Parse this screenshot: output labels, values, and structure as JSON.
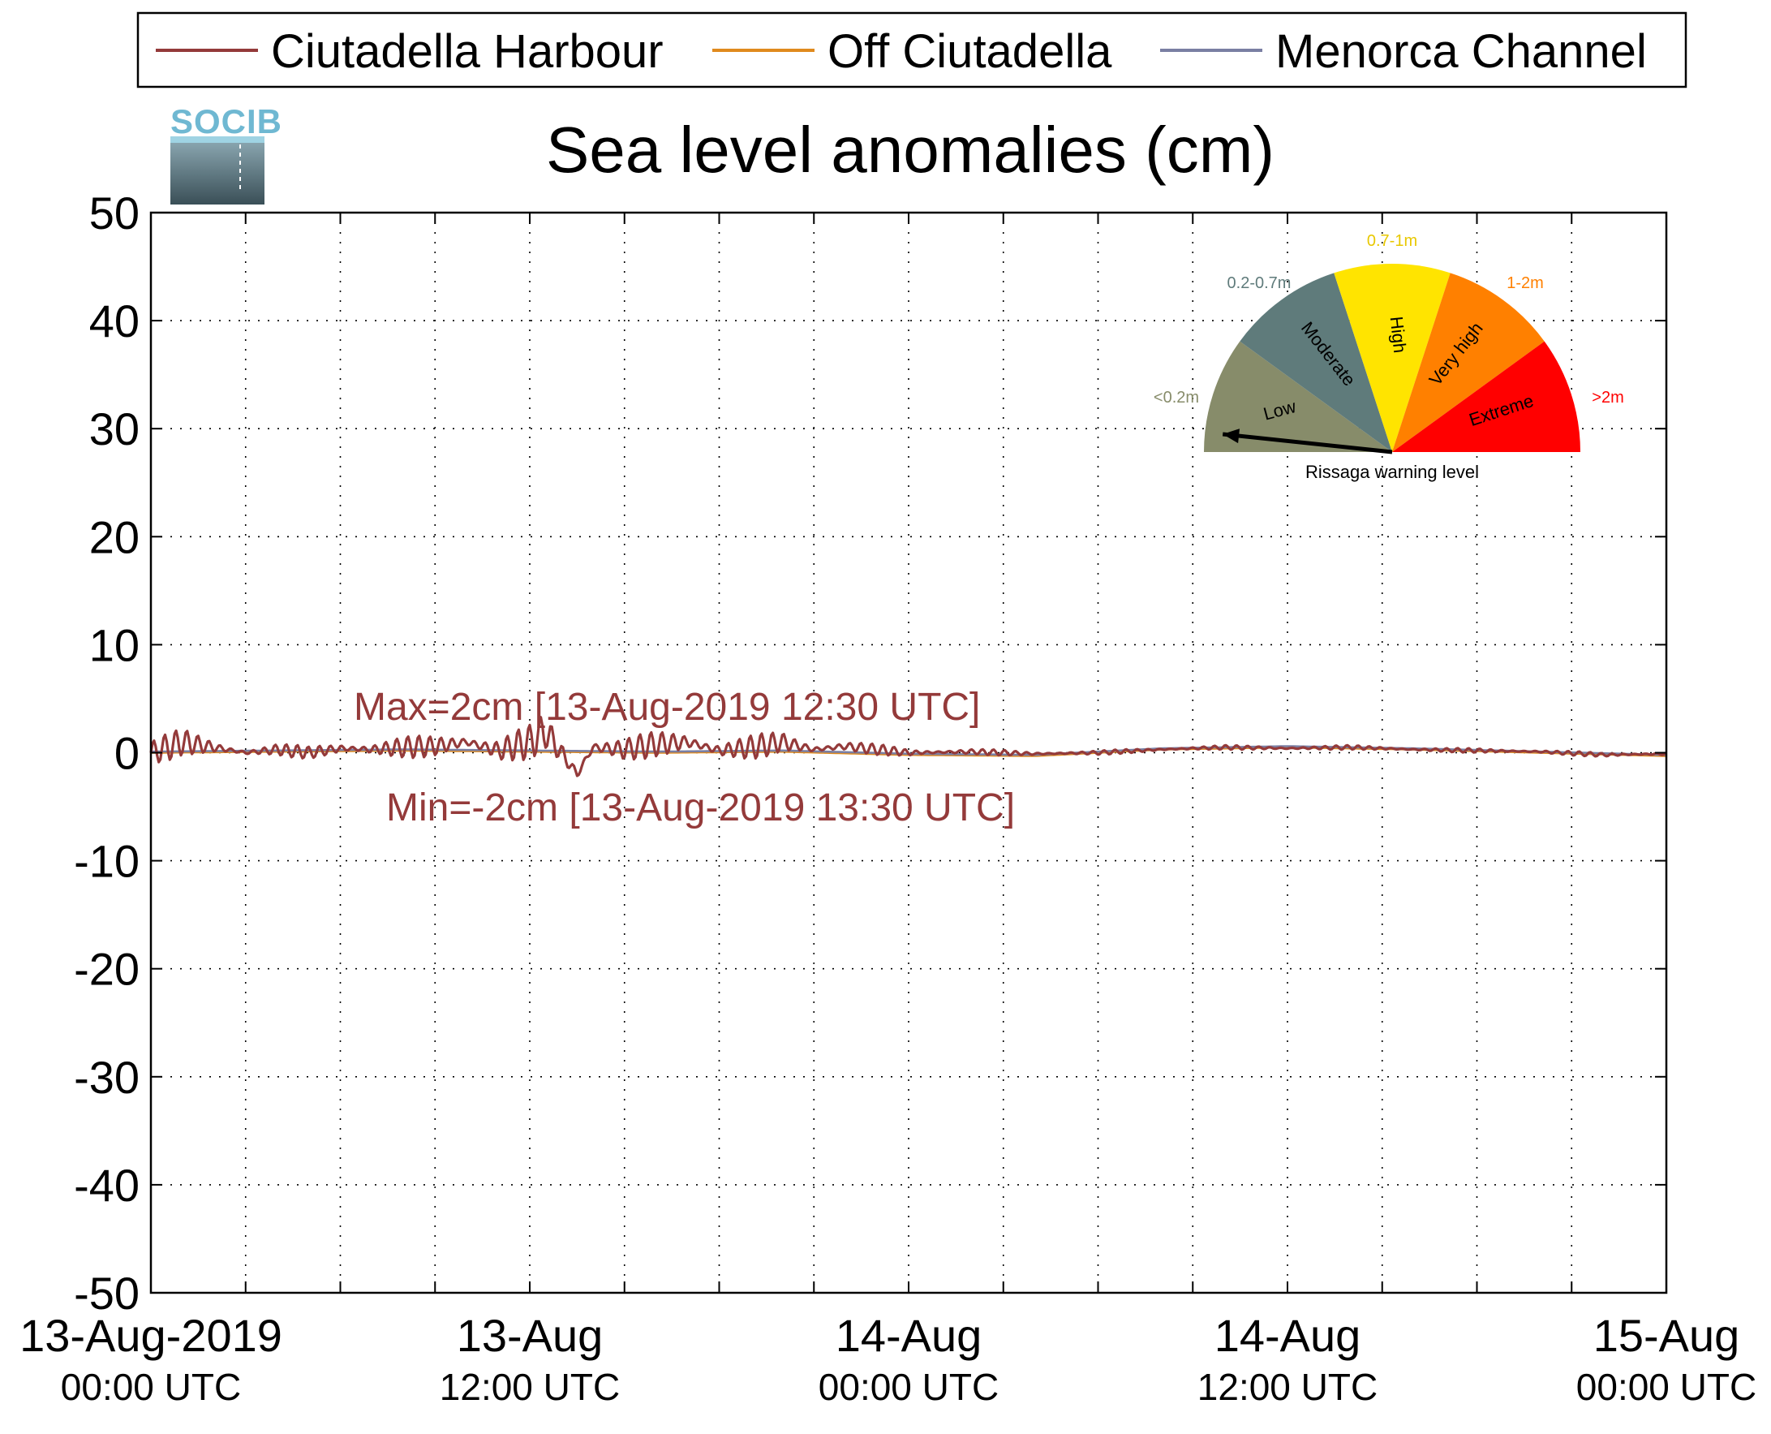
{
  "chart_data": {
    "type": "line",
    "title": "Sea level anomalies (cm)",
    "xlabel": "",
    "ylabel": "",
    "ylim": [
      -50,
      50
    ],
    "yticks": [
      50,
      40,
      30,
      20,
      10,
      0,
      -10,
      -20,
      -30,
      -40,
      -50
    ],
    "xlim_hours": [
      0,
      48
    ],
    "xtick_hours": [
      0,
      12,
      24,
      36,
      48
    ],
    "xtick_labels": [
      {
        "date": "13-Aug-2019",
        "time": "00:00 UTC"
      },
      {
        "date": "13-Aug",
        "time": "12:00 UTC"
      },
      {
        "date": "14-Aug",
        "time": "00:00 UTC"
      },
      {
        "date": "14-Aug",
        "time": "12:00 UTC"
      },
      {
        "date": "15-Aug",
        "time": "00:00 UTC"
      }
    ],
    "grid": true,
    "legend_position": "top",
    "series": [
      {
        "name": "Ciutadella Harbour",
        "color": "#943a3a",
        "x": [
          0,
          1,
          2,
          3,
          4,
          5,
          6,
          7,
          8,
          9,
          10,
          11,
          12,
          12.5,
          13,
          13.5,
          14,
          15,
          16,
          17,
          18,
          19,
          20,
          21,
          22,
          23,
          24,
          26,
          28,
          30,
          32,
          34,
          36,
          38,
          40,
          42,
          44,
          46,
          48
        ],
        "y": [
          0,
          1,
          0.5,
          0,
          0.3,
          0,
          0.4,
          0.3,
          0.5,
          0.6,
          1,
          0.2,
          1,
          2,
          0,
          -2,
          0.5,
          0.3,
          0.8,
          1,
          0.2,
          0.5,
          1,
          0.3,
          0.6,
          0.3,
          0,
          0.1,
          -0.1,
          0,
          0.3,
          0.5,
          0.4,
          0.5,
          0.3,
          0.2,
          0.1,
          -0.2,
          -0.1
        ],
        "amplitude": [
          1.6,
          1.2,
          0.8,
          0.5,
          0.6,
          0.6,
          0.8,
          0.9,
          1.0,
          1.1,
          1.3,
          1.5,
          1.6,
          1.8,
          1.4,
          1.2,
          1.3,
          1.2,
          1.2,
          1.3,
          1.3,
          1.2,
          1.0,
          0.8,
          0.6,
          0.5,
          0.4,
          0.3,
          0.2,
          0.2,
          0.2,
          0.2,
          0.2,
          0.2,
          0.2,
          0.2,
          0.2,
          0.2,
          0.2
        ]
      },
      {
        "name": "Off Ciutadella",
        "color": "#e08a1e",
        "x": [
          0,
          4,
          8,
          12,
          16,
          20,
          24,
          28,
          32,
          36,
          40,
          44,
          48
        ],
        "y": [
          0,
          0.1,
          0.2,
          0.1,
          0,
          0.1,
          -0.2,
          -0.3,
          0.3,
          0.5,
          0.3,
          0,
          -0.3
        ]
      },
      {
        "name": "Menorca Channel",
        "color": "#7a7fa3",
        "x": [
          0,
          4,
          8,
          12,
          16,
          20,
          24,
          28,
          32,
          36,
          40,
          44,
          48
        ],
        "y": [
          0.1,
          0.2,
          0.3,
          0.2,
          0.1,
          0.2,
          -0.1,
          -0.2,
          0.4,
          0.6,
          0.4,
          0.1,
          -0.2
        ]
      }
    ],
    "annotations": {
      "max": "Max=2cm [13-Aug-2019 12:30 UTC]",
      "min": "Min=-2cm [13-Aug-2019 13:30 UTC]",
      "color": "#943a3a"
    }
  },
  "logo": {
    "text": "SOCIB"
  },
  "gauge": {
    "caption": "Rissaga warning level",
    "pointer": "Low",
    "segments": [
      {
        "name": "Low",
        "range": "<0.2m",
        "color": "#878c6a",
        "label_color": "#878c6a"
      },
      {
        "name": "Moderate",
        "range": "0.2-0.7m",
        "color": "#5f7b7b",
        "label_color": "#5f7b7b"
      },
      {
        "name": "High",
        "range": "0.7-1m",
        "color": "#ffe400",
        "label_color": "#e8c800"
      },
      {
        "name": "Very high",
        "range": "1-2m",
        "color": "#ff8000",
        "label_color": "#ff8000"
      },
      {
        "name": "Extreme",
        "range": ">2m",
        "color": "#ff0000",
        "label_color": "#ff0000"
      }
    ]
  }
}
